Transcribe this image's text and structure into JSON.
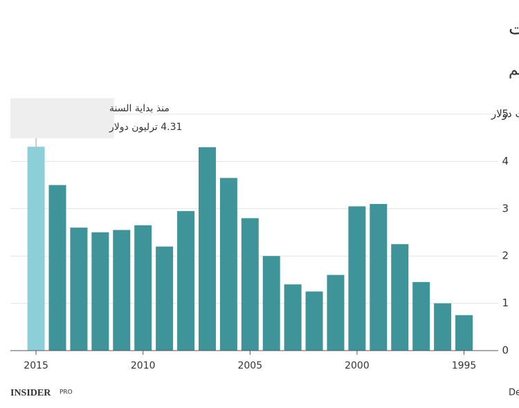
{
  "chart_data": {
    "type": "bar",
    "title": "الاستحواذات والاندماجات",
    "subtitle": "الحجم الكلي للاستحواذات والاندماجات في العالم",
    "y_label": "ترليونات دولار",
    "x": [
      2015,
      2014,
      2013,
      2012,
      2011,
      2010,
      2009,
      2008,
      2007,
      2006,
      2005,
      2004,
      2003,
      2002,
      2001,
      2000,
      1999,
      1998,
      1997,
      1996,
      1995
    ],
    "values": [
      4.31,
      3.5,
      2.6,
      2.5,
      2.55,
      2.65,
      2.2,
      2.95,
      4.3,
      3.65,
      2.8,
      2.0,
      1.4,
      1.25,
      1.6,
      3.05,
      3.1,
      2.25,
      1.45,
      1.0,
      0.75
    ],
    "colors": [
      "#8dcfd9",
      "#3f9499",
      "#3f9499",
      "#3f9499",
      "#3f9499",
      "#3f9499",
      "#3f9499",
      "#3f9499",
      "#3f9499",
      "#3f9499",
      "#3f9499",
      "#3f9499",
      "#3f9499",
      "#3f9499",
      "#3f9499",
      "#3f9499",
      "#3f9499",
      "#3f9499",
      "#3f9499",
      "#3f9499",
      "#3f9499"
    ],
    "xlim": [
      2016.2,
      1993.4
    ],
    "xticks": [
      2015,
      2010,
      2005,
      2000,
      1995
    ],
    "ylim": [
      0,
      5
    ],
    "yticks": [
      0,
      1,
      2,
      3,
      4,
      5
    ],
    "grid": true,
    "annotation": {
      "label": "منذ بداية السنة",
      "value_label": "4.31 ترليون دولار"
    },
    "source": "المصدر: Dealogic",
    "logo": "INSIDER",
    "logo_badge": "PRO"
  }
}
